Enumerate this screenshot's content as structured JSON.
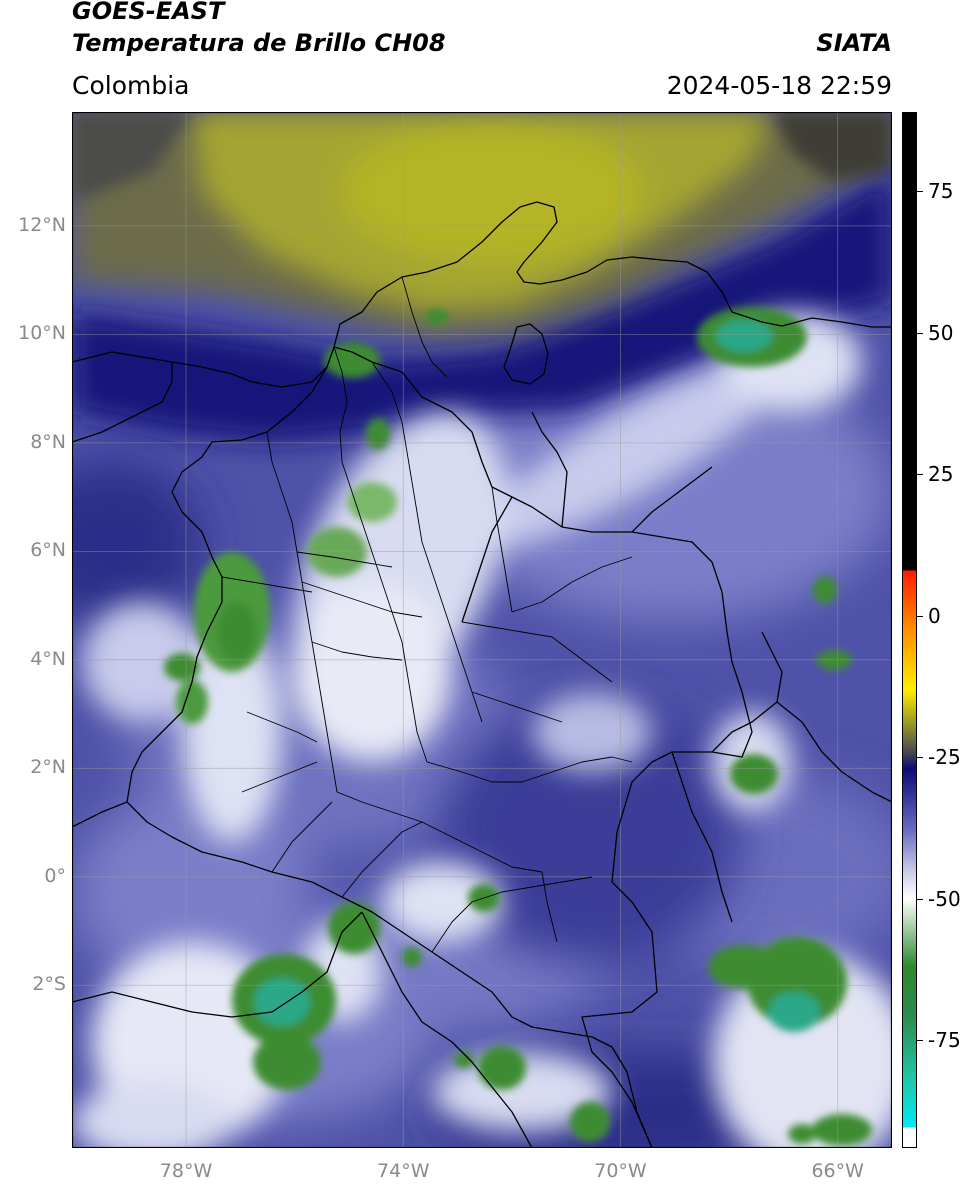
{
  "header": {
    "title_line1": "GOES-EAST",
    "title_line2": "Temperatura de Brillo CH08",
    "region": "Colombia",
    "organization": "SIATA",
    "datetime": "2024-05-18 22:59"
  },
  "map": {
    "lat_labels": [
      {
        "text": "12°N",
        "lat": 12
      },
      {
        "text": "10°N",
        "lat": 10
      },
      {
        "text": "8°N",
        "lat": 8
      },
      {
        "text": "6°N",
        "lat": 6
      },
      {
        "text": "4°N",
        "lat": 4
      },
      {
        "text": "2°N",
        "lat": 2
      },
      {
        "text": "0°",
        "lat": 0
      },
      {
        "text": "2°S",
        "lat": -2
      }
    ],
    "lon_labels": [
      {
        "text": "78°W",
        "lon": -78
      },
      {
        "text": "74°W",
        "lon": -74
      },
      {
        "text": "70°W",
        "lon": -70
      },
      {
        "text": "66°W",
        "lon": -66
      }
    ],
    "extent": {
      "lon_min": -80.1,
      "lon_max": -65.0,
      "lat_min": -5.0,
      "lat_max": 14.1
    },
    "colors": {
      "cold_dark": "#14147a",
      "mid_blue": "#5a5eb0",
      "light": "#eef0f8",
      "green": "#3a8a2e",
      "teal": "#2ab8a0",
      "olive": "#a8a828",
      "dark_olive": "#4a4a3a"
    }
  },
  "colorbar": {
    "labels": [
      {
        "text": "75",
        "value": 75
      },
      {
        "text": "50",
        "value": 50
      },
      {
        "text": "25",
        "value": 25
      },
      {
        "text": "0",
        "value": 0
      },
      {
        "text": "-25",
        "value": -25
      },
      {
        "text": "-50",
        "value": -50
      },
      {
        "text": "-75",
        "value": -75
      }
    ],
    "range": [
      -94,
      89
    ],
    "colors": {
      "black": "#000000",
      "red": "#ff1a00",
      "orange": "#ff8c00",
      "yellow": "#ffee00",
      "olive": "#8a8a2a",
      "dark_blue": "#0a0a7a",
      "mid_blue": "#6a6ec0",
      "white": "#ffffff",
      "green": "#2e8a2e",
      "teal": "#20c8a8",
      "cyan": "#00e8f0"
    }
  }
}
